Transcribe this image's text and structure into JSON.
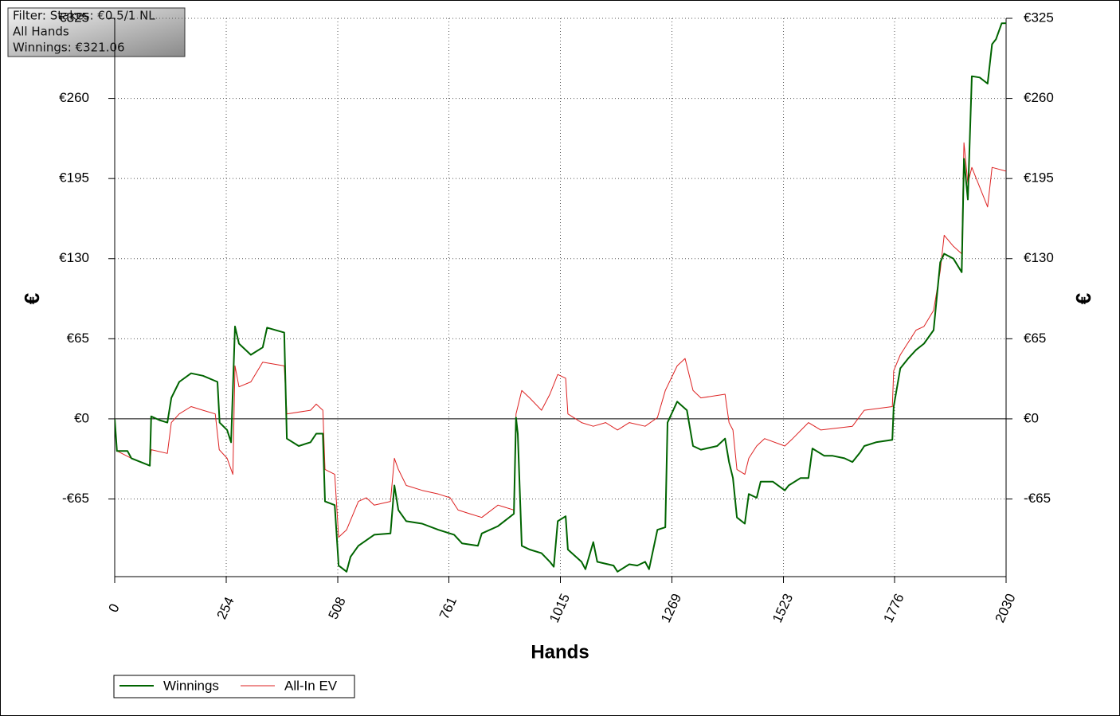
{
  "chart_data": {
    "type": "line",
    "info_box": [
      "Filter: Stakes: €0.5/1 NL",
      "All Hands",
      "Winnings: €321.06"
    ],
    "x_label": "Hands",
    "y_label": "€",
    "xlim": [
      0,
      2030
    ],
    "xticks": [
      0,
      254,
      508,
      761,
      1015,
      1269,
      1523,
      1776,
      2030
    ],
    "ylim": [
      -128,
      325
    ],
    "yticks": [
      {
        "value": -65,
        "label": "-€65"
      },
      {
        "value": 0,
        "label": "€0"
      },
      {
        "value": 65,
        "label": "€65"
      },
      {
        "value": 130,
        "label": "€130"
      },
      {
        "value": 195,
        "label": "€195"
      },
      {
        "value": 260,
        "label": "€260"
      },
      {
        "value": 325,
        "label": "€325"
      }
    ],
    "grid": true,
    "legend": "bottom-left",
    "series": [
      {
        "name": "Winnings",
        "color": "#006400",
        "x": [
          0,
          5,
          29,
          38,
          80,
          83,
          102,
          120,
          129,
          147,
          174,
          201,
          234,
          239,
          256,
          265,
          274,
          283,
          310,
          337,
          347,
          386,
          392,
          419,
          446,
          459,
          474,
          479,
          501,
          510,
          528,
          537,
          555,
          591,
          628,
          637,
          646,
          664,
          700,
          737,
          773,
          791,
          827,
          836,
          873,
          909,
          914,
          918,
          927,
          945,
          972,
          991,
          1000,
          1009,
          1027,
          1032,
          1063,
          1072,
          1090,
          1099,
          1136,
          1145,
          1172,
          1190,
          1208,
          1217,
          1236,
          1254,
          1259,
          1281,
          1303,
          1317,
          1335,
          1372,
          1390,
          1399,
          1408,
          1417,
          1435,
          1444,
          1462,
          1471,
          1499,
          1526,
          1535,
          1562,
          1580,
          1589,
          1616,
          1635,
          1662,
          1680,
          1698,
          1707,
          1734,
          1771,
          1774,
          1789,
          1807,
          1825,
          1843,
          1865,
          1880,
          1889,
          1910,
          1929,
          1934,
          1943,
          1952,
          1970,
          1988,
          1998,
          2007,
          2020,
          2030
        ],
        "values": [
          0,
          -26,
          -26,
          -32,
          -38,
          2,
          -1,
          -3,
          17,
          30,
          37,
          35,
          30,
          -3,
          -9,
          -19,
          75,
          61,
          52,
          58,
          74,
          70,
          -16,
          -22,
          -19,
          -12,
          -12,
          -67,
          -70,
          -119,
          -124,
          -112,
          -103,
          -94,
          -93,
          -54,
          -74,
          -83,
          -85,
          -90,
          -94,
          -101,
          -103,
          -93,
          -87,
          -77,
          1,
          -12,
          -103,
          -106,
          -109,
          -116,
          -120,
          -83,
          -79,
          -106,
          -116,
          -122,
          -100,
          -116,
          -119,
          -124,
          -118,
          -119,
          -116,
          -122,
          -90,
          -88,
          -3,
          14,
          7,
          -22,
          -25,
          -22,
          -16,
          -35,
          -48,
          -80,
          -85,
          -61,
          -64,
          -51,
          -51,
          -58,
          -54,
          -48,
          -48,
          -24,
          -30,
          -30,
          -32,
          -35,
          -27,
          -22,
          -19,
          -17,
          10,
          41,
          49,
          56,
          61,
          72,
          127,
          134,
          130,
          119,
          211,
          178,
          278,
          277,
          272,
          304,
          308,
          321,
          321.06
        ]
      },
      {
        "name": "All-In EV",
        "color": "#dd2222",
        "x": [
          0,
          5,
          38,
          80,
          83,
          120,
          129,
          147,
          174,
          201,
          229,
          238,
          256,
          269,
          274,
          283,
          310,
          337,
          386,
          392,
          446,
          459,
          474,
          479,
          501,
          510,
          528,
          555,
          573,
          591,
          628,
          637,
          646,
          664,
          700,
          737,
          764,
          782,
          809,
          836,
          873,
          909,
          914,
          927,
          945,
          972,
          991,
          1009,
          1027,
          1032,
          1063,
          1090,
          1118,
          1145,
          1172,
          1208,
          1236,
          1254,
          1281,
          1299,
          1317,
          1335,
          1390,
          1399,
          1408,
          1417,
          1435,
          1444,
          1462,
          1480,
          1526,
          1544,
          1580,
          1608,
          1680,
          1707,
          1771,
          1774,
          1789,
          1807,
          1825,
          1843,
          1865,
          1880,
          1889,
          1910,
          1929,
          1934,
          1943,
          1952,
          1988,
          1998,
          2030
        ],
        "values": [
          0,
          -26,
          -32,
          -38,
          -25,
          -28,
          -3,
          4,
          10,
          7,
          4,
          -25,
          -32,
          -45,
          43,
          26,
          30,
          46,
          43,
          4,
          7,
          12,
          7,
          -41,
          -45,
          -96,
          -90,
          -67,
          -64,
          -70,
          -67,
          -32,
          -41,
          -54,
          -58,
          -61,
          -64,
          -74,
          -77,
          -80,
          -70,
          -74,
          4,
          23,
          17,
          7,
          20,
          36,
          33,
          4,
          -3,
          -6,
          -3,
          -9,
          -3,
          -6,
          1,
          23,
          43,
          49,
          23,
          17,
          20,
          -3,
          -9,
          -41,
          -45,
          -32,
          -22,
          -16,
          -22,
          -16,
          -3,
          -9,
          -6,
          7,
          10,
          39,
          52,
          62,
          72,
          75,
          88,
          120,
          149,
          140,
          134,
          224,
          191,
          204,
          172,
          204,
          201
        ]
      }
    ]
  }
}
